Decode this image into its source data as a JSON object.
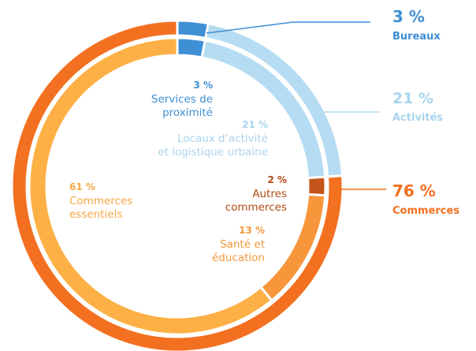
{
  "chart_data": {
    "type": "nested-donut",
    "outer": {
      "categories": [
        "Bureaux",
        "Activités",
        "Commerces"
      ],
      "values": [
        3,
        21,
        76
      ],
      "value_labels": [
        "3 %",
        "21 %",
        "76 %"
      ],
      "colors": [
        "#3f8fd5",
        "#b5dcf2",
        "#f37021"
      ]
    },
    "inner": {
      "categories": [
        "Services de\nproximité",
        "Locaux d’activité\net logistique urbaine",
        "Autres\ncommerces",
        "Santé et\néducation",
        "Commerces\nessentiels"
      ],
      "values": [
        3,
        21,
        2,
        13,
        61
      ],
      "value_labels": [
        "3 %",
        "21 %",
        "2 %",
        "13 %",
        "61 %"
      ],
      "colors": [
        "#3f8fd5",
        "#b5dcf2",
        "#c4541a",
        "#f7963a",
        "#fdb045"
      ]
    }
  }
}
